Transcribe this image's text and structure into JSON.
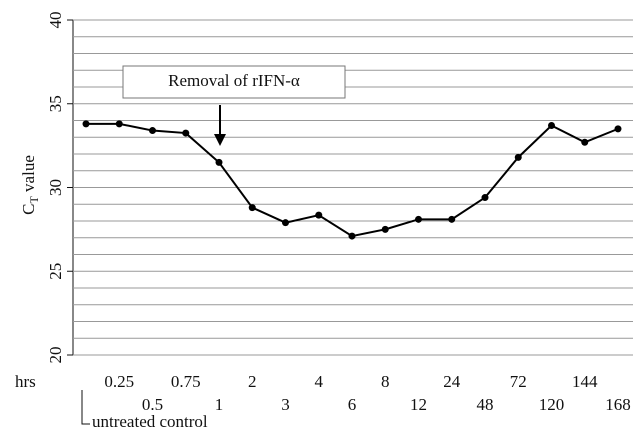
{
  "chart_data": {
    "type": "line",
    "ylabel_main": "C",
    "ylabel_sub": "T",
    "ylabel_rest": " value",
    "x_unit": "hrs",
    "annotation": "Removal of rIFN-α",
    "categories": [
      "untreated control",
      "0.25",
      "0.5",
      "0.75",
      "1",
      "2",
      "3",
      "4",
      "6",
      "8",
      "12",
      "24",
      "48",
      "72",
      "120",
      "144",
      "168"
    ],
    "values": [
      33.8,
      33.8,
      33.4,
      33.25,
      31.5,
      28.8,
      27.9,
      28.35,
      27.1,
      27.5,
      28.1,
      28.1,
      29.4,
      31.8,
      33.7,
      32.7,
      33.5
    ],
    "color": "#000000",
    "ylim": [
      20,
      40
    ],
    "yticks": [
      20,
      25,
      30,
      35,
      40
    ],
    "minor_yticks": [
      21,
      22,
      23,
      24,
      26,
      27,
      28,
      29,
      31,
      32,
      33,
      34,
      36,
      37,
      38,
      39
    ],
    "grid": true
  }
}
